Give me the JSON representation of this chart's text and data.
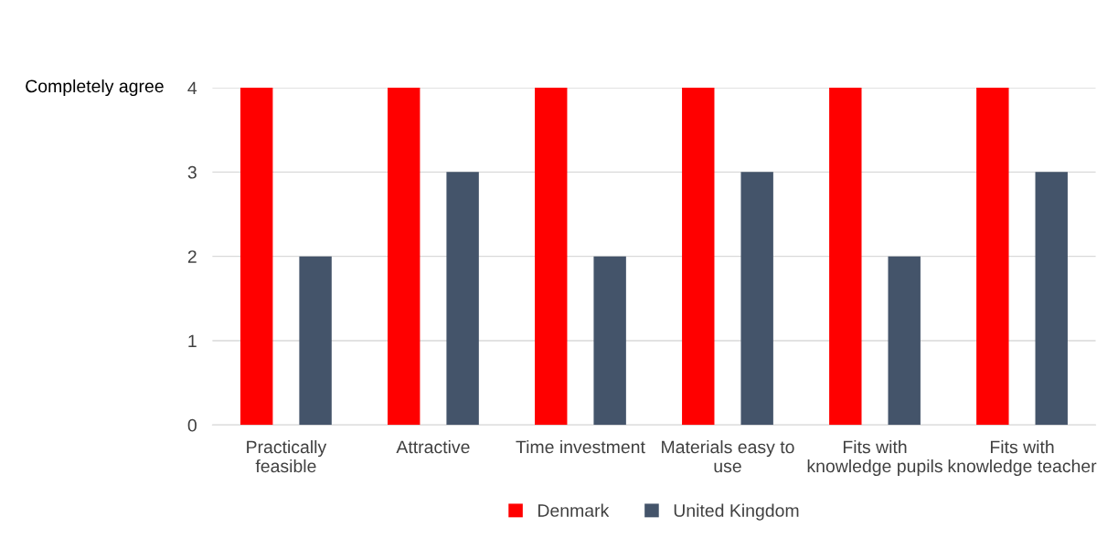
{
  "chart_data": {
    "type": "bar",
    "ylabel": "Completely agree",
    "categories": [
      "Practically feasible",
      "Attractive",
      "Time investment",
      "Materials easy to use",
      "Fits with knowledge pupils",
      "Fits with knowledge teacher"
    ],
    "series": [
      {
        "name": "Denmark",
        "color": "#ff0000",
        "values": [
          4,
          4,
          4,
          4,
          4,
          4
        ]
      },
      {
        "name": "United Kingdom",
        "color": "#44546a",
        "values": [
          2,
          3,
          2,
          3,
          2,
          3
        ]
      }
    ],
    "ylim": [
      0,
      4
    ],
    "yticks": [
      0,
      1,
      2,
      3,
      4
    ],
    "grid": "y",
    "legend": "bottom"
  }
}
